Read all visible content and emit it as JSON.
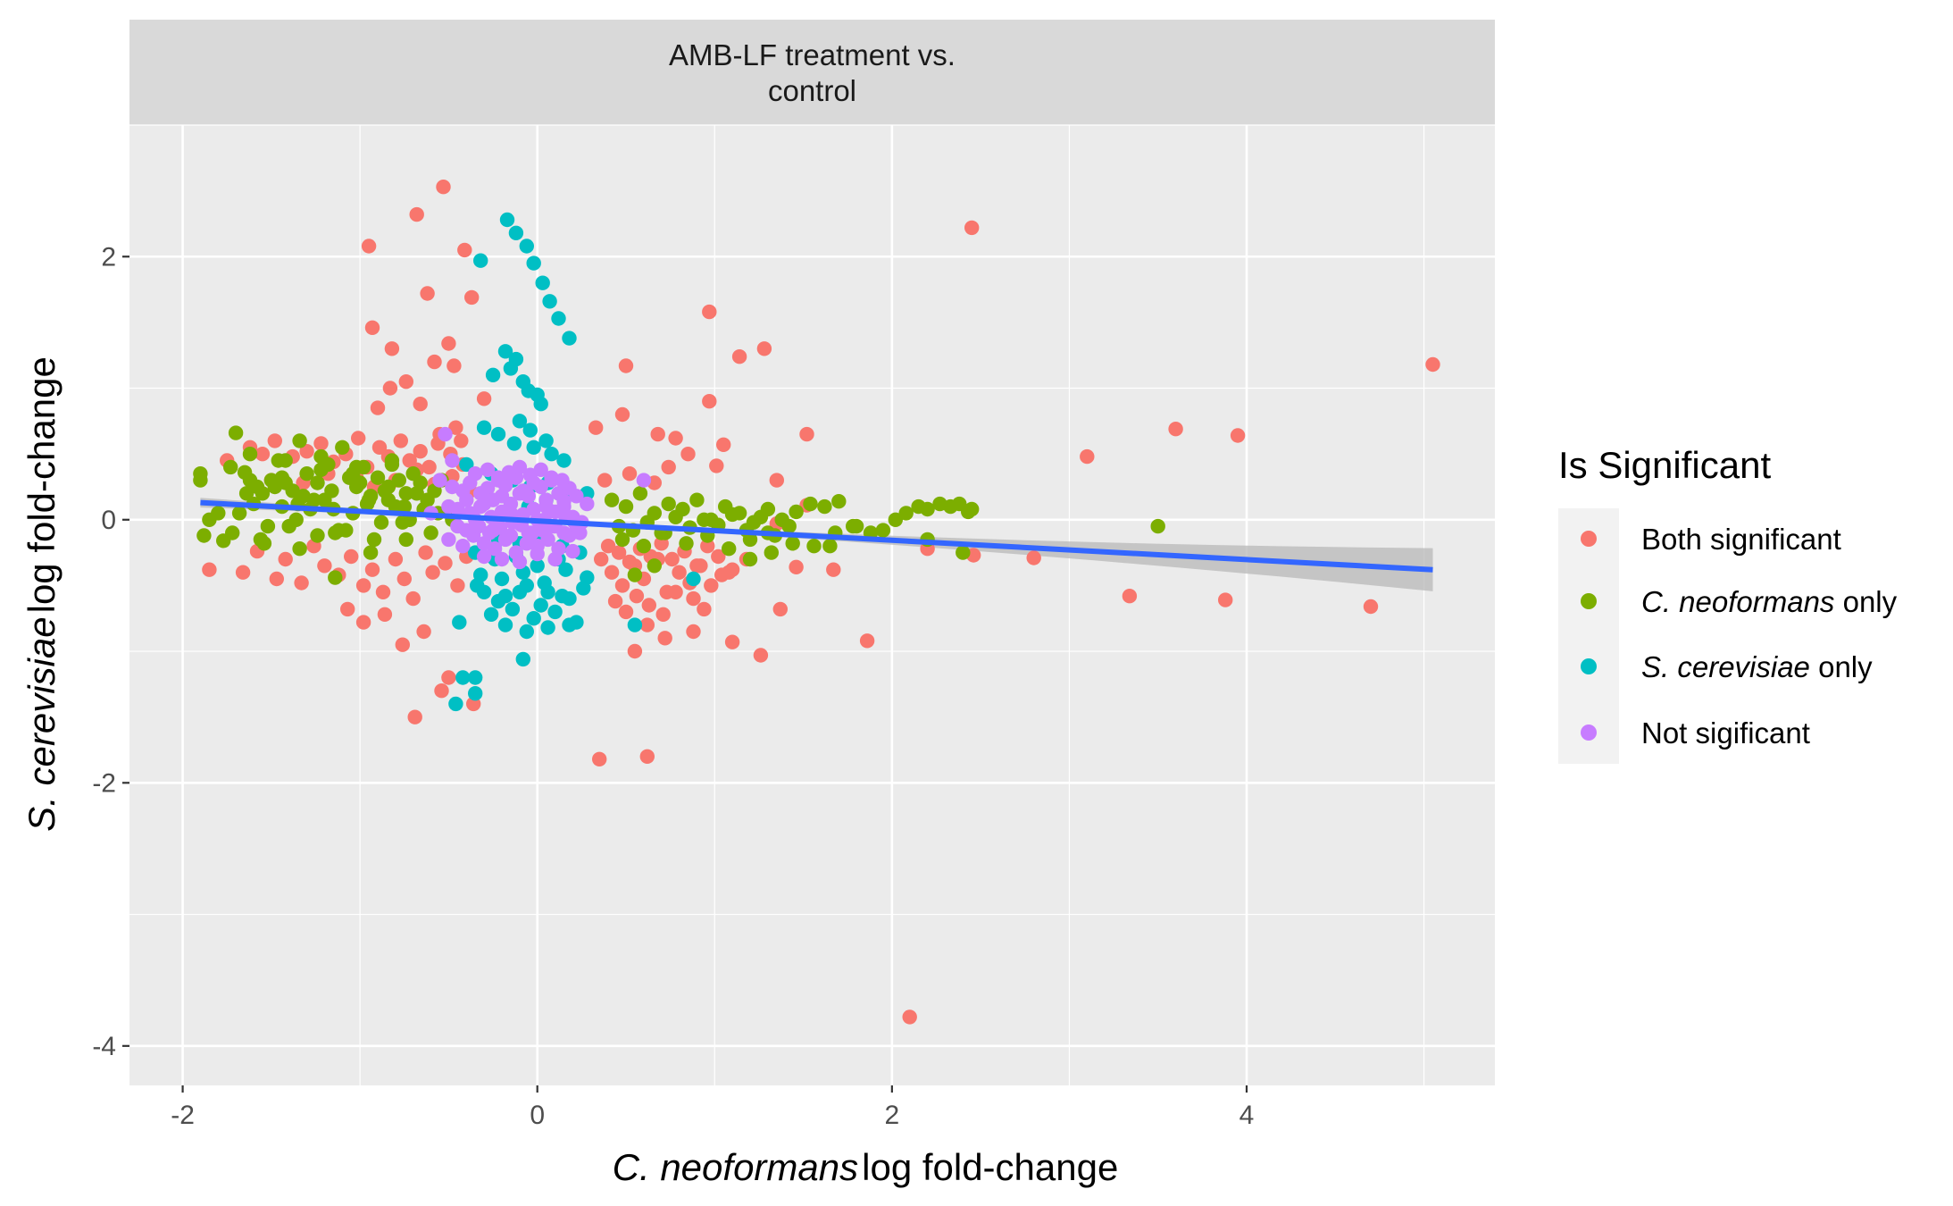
{
  "colors": {
    "both": "#F8766D",
    "cneo": "#7CAE00",
    "scer": "#00BFC4",
    "none": "#C77CFF",
    "fit": "#3366FF",
    "ribbon": "#B8B8B8",
    "panel": "#EBEBEB",
    "strip": "#D9D9D9",
    "grid": "#FFFFFF"
  },
  "chart_data": {
    "type": "scatter",
    "facet_title_line1": "AMB-LF treatment vs.",
    "facet_title_line2": "control",
    "xlabel_italic": "C. neoformans",
    "xlabel_rest": "log fold-change",
    "ylabel_italic": "S. cerevisiae",
    "ylabel_rest": "log fold-change",
    "xlim": [
      -2.3,
      5.4
    ],
    "ylim": [
      -4.3,
      3.0
    ],
    "x_ticks": [
      -2,
      0,
      2,
      4
    ],
    "x_tick_labels": [
      "-2",
      "0",
      "2",
      "4"
    ],
    "y_ticks": [
      -4,
      -2,
      0,
      2
    ],
    "y_tick_labels": [
      "-4",
      "-2",
      "0",
      "2"
    ],
    "grid": true,
    "legend_position": "right",
    "legend": {
      "title": "Is Significant",
      "items": [
        {
          "key": "both",
          "italic": "",
          "rest": "Both significant"
        },
        {
          "key": "cneo",
          "italic": "C. neoformans",
          "rest": " only"
        },
        {
          "key": "scer",
          "italic": "S. cerevisiae",
          "rest": " only"
        },
        {
          "key": "none",
          "italic": "",
          "rest": "Not sigificant"
        }
      ]
    },
    "fit_line": {
      "x": [
        -1.9,
        5.05
      ],
      "y": [
        0.13,
        -0.38
      ]
    },
    "series": [
      {
        "name": "Both significant",
        "key": "both",
        "x": [
          -0.53,
          -0.68,
          -0.95,
          -0.41,
          -0.37,
          -0.62,
          -0.93,
          -0.82,
          -0.5,
          -0.58,
          -0.47,
          -0.74,
          -0.83,
          -0.9,
          -0.66,
          -0.3,
          -0.46,
          -0.43,
          -0.55,
          0.5,
          0.48,
          0.97,
          1.14,
          1.28,
          0.97,
          0.68,
          0.78,
          0.85,
          1.05,
          1.01,
          0.33,
          2.45,
          3.1,
          3.6,
          3.95,
          5.05,
          1.35,
          1.52,
          1.35,
          1.52,
          1.46,
          1.1,
          1.26,
          1.37,
          1.67,
          1.86,
          2.2,
          2.46,
          2.8,
          3.34,
          3.88,
          4.7,
          -0.69,
          -0.36,
          -0.5,
          -0.54,
          0.35,
          0.62,
          2.1,
          -1.85,
          -1.66,
          -1.58,
          -1.47,
          -1.42,
          -1.33,
          -1.26,
          -1.2,
          -1.12,
          -1.05,
          -0.98,
          -0.93,
          -0.87,
          -0.8,
          -0.75,
          -0.7,
          -0.63,
          -0.59,
          -0.52,
          -0.45,
          -0.4,
          -1.75,
          -1.62,
          -1.55,
          -1.48,
          -1.38,
          -1.3,
          -1.22,
          -1.15,
          -1.08,
          -1.01,
          -0.96,
          -0.89,
          -0.84,
          -0.77,
          -0.72,
          -0.66,
          -0.61,
          -0.56,
          -0.49,
          -0.42,
          -1.5,
          -1.32,
          -1.18,
          -1.02,
          -0.92,
          -0.8,
          -0.68,
          -0.58,
          -0.48,
          -0.38,
          0.36,
          0.42,
          0.48,
          0.55,
          0.6,
          0.68,
          0.73,
          0.8,
          0.86,
          0.92,
          0.98,
          1.04,
          1.1,
          1.18,
          0.4,
          0.46,
          0.52,
          0.58,
          0.64,
          0.7,
          0.76,
          0.83,
          0.9,
          0.96,
          1.02,
          1.08,
          0.44,
          0.5,
          0.56,
          0.63,
          0.71,
          0.78,
          0.88,
          0.94,
          0.38,
          0.52,
          0.66,
          0.74,
          -0.98,
          -1.07,
          -0.86,
          -0.76,
          -0.64,
          0.55,
          0.62,
          0.72,
          0.88
        ],
        "y": [
          2.53,
          2.32,
          2.08,
          2.05,
          1.69,
          1.72,
          1.46,
          1.3,
          1.34,
          1.2,
          1.17,
          1.05,
          1.0,
          0.85,
          0.88,
          0.92,
          0.7,
          0.6,
          0.65,
          1.17,
          0.8,
          1.58,
          1.24,
          1.3,
          0.9,
          0.65,
          0.62,
          0.5,
          0.57,
          0.41,
          0.7,
          2.22,
          0.48,
          0.69,
          0.64,
          1.18,
          0.3,
          0.65,
          -0.03,
          0.11,
          -0.36,
          -0.93,
          -1.03,
          -0.68,
          -0.38,
          -0.92,
          -0.22,
          -0.27,
          -0.29,
          -0.58,
          -0.61,
          -0.66,
          -1.5,
          -1.4,
          -1.2,
          -1.3,
          -1.82,
          -1.8,
          -3.78,
          -0.38,
          -0.4,
          -0.24,
          -0.45,
          -0.3,
          -0.48,
          -0.2,
          -0.35,
          -0.42,
          -0.28,
          -0.5,
          -0.38,
          -0.55,
          -0.3,
          -0.45,
          -0.6,
          -0.25,
          -0.4,
          -0.33,
          -0.5,
          -0.28,
          0.45,
          0.55,
          0.5,
          0.6,
          0.48,
          0.52,
          0.58,
          0.44,
          0.5,
          0.62,
          0.4,
          0.55,
          0.48,
          0.6,
          0.45,
          0.52,
          0.4,
          0.58,
          0.5,
          0.42,
          0.3,
          0.28,
          0.35,
          0.32,
          0.25,
          0.3,
          0.38,
          0.27,
          0.33,
          0.22,
          -0.3,
          -0.4,
          -0.5,
          -0.35,
          -0.45,
          -0.3,
          -0.55,
          -0.4,
          -0.48,
          -0.35,
          -0.5,
          -0.42,
          -0.38,
          -0.3,
          -0.2,
          -0.25,
          -0.32,
          -0.22,
          -0.28,
          -0.18,
          -0.3,
          -0.24,
          -0.35,
          -0.2,
          -0.28,
          -0.4,
          -0.62,
          -0.7,
          -0.58,
          -0.65,
          -0.72,
          -0.55,
          -0.6,
          -0.68,
          0.3,
          0.35,
          0.28,
          0.4,
          -0.78,
          -0.68,
          -0.72,
          -0.95,
          -0.85,
          -1.0,
          -0.8,
          -0.9,
          -0.85
        ]
      },
      {
        "name": "C. neoformans only",
        "key": "cneo",
        "x": [
          -1.9,
          -1.88,
          -1.9,
          -1.85,
          -1.8,
          -1.73,
          -1.77,
          -1.7,
          -1.65,
          -1.62,
          -1.58,
          -1.55,
          -1.5,
          -1.46,
          -1.42,
          -1.38,
          -1.34,
          -1.3,
          -1.26,
          -1.22,
          -1.18,
          -1.14,
          -1.1,
          -1.06,
          -1.02,
          -0.98,
          -0.94,
          -0.9,
          -0.86,
          -0.82,
          -0.78,
          -0.74,
          -0.7,
          -0.66,
          -0.62,
          -0.58,
          -0.54,
          -1.68,
          -1.6,
          -1.52,
          -1.44,
          -1.36,
          -1.28,
          -1.2,
          -1.12,
          -1.04,
          -0.96,
          -0.88,
          -0.8,
          -0.72,
          -0.64,
          -0.56,
          -0.48,
          -1.72,
          -1.56,
          -1.4,
          -1.24,
          -1.08,
          -0.92,
          -0.76,
          -0.6,
          -1.64,
          -1.48,
          -1.32,
          -1.16,
          -1.0,
          -0.84,
          -0.68,
          -1.54,
          -1.34,
          -1.14,
          -0.94,
          -0.74,
          -1.44,
          -1.24,
          -1.04,
          -0.84,
          -1.35,
          -1.15,
          -0.95,
          -0.75,
          -1.62,
          -1.42,
          -1.22,
          -1.02,
          -0.82,
          0.42,
          0.5,
          0.58,
          0.66,
          0.74,
          0.82,
          0.9,
          0.98,
          1.06,
          1.14,
          1.22,
          1.3,
          1.38,
          1.46,
          1.54,
          1.62,
          1.7,
          0.46,
          0.54,
          0.62,
          0.7,
          0.78,
          0.86,
          0.94,
          1.02,
          1.1,
          1.18,
          1.26,
          1.34,
          1.42,
          0.48,
          0.6,
          0.72,
          0.84,
          0.96,
          1.08,
          1.2,
          1.32,
          1.44,
          1.56,
          1.68,
          1.78,
          1.8,
          1.88,
          1.95,
          2.02,
          2.08,
          2.15,
          2.2,
          2.27,
          2.33,
          2.38,
          2.43,
          2.45,
          2.2,
          2.4,
          1.65,
          3.5,
          0.55,
          0.66,
          1.2,
          1.3
        ],
        "y": [
          0.35,
          -0.12,
          0.3,
          0.0,
          0.05,
          0.4,
          -0.16,
          0.66,
          0.36,
          0.3,
          0.25,
          0.2,
          0.3,
          0.45,
          0.28,
          0.22,
          0.6,
          0.35,
          0.15,
          0.38,
          0.42,
          -0.44,
          0.55,
          0.32,
          0.25,
          0.4,
          0.18,
          0.32,
          0.22,
          0.45,
          0.3,
          0.2,
          0.35,
          0.28,
          0.15,
          0.22,
          0.3,
          0.05,
          0.12,
          -0.05,
          0.1,
          0.0,
          0.08,
          0.15,
          -0.08,
          0.05,
          0.12,
          -0.02,
          0.1,
          0.0,
          0.08,
          0.05,
          0.0,
          -0.1,
          -0.15,
          -0.05,
          -0.12,
          -0.08,
          -0.15,
          -0.02,
          -0.1,
          0.2,
          0.25,
          0.18,
          0.22,
          0.28,
          0.15,
          0.2,
          -0.18,
          -0.22,
          -0.1,
          -0.25,
          -0.15,
          0.32,
          0.28,
          0.35,
          0.25,
          0.12,
          0.08,
          0.15,
          0.1,
          0.5,
          0.45,
          0.48,
          0.4,
          0.42,
          0.15,
          0.1,
          0.2,
          0.05,
          0.12,
          0.08,
          0.15,
          0.0,
          0.1,
          0.05,
          -0.02,
          0.08,
          0.0,
          0.06,
          0.12,
          0.1,
          0.14,
          -0.05,
          -0.08,
          -0.02,
          -0.1,
          0.02,
          -0.06,
          0.0,
          -0.04,
          0.04,
          -0.08,
          0.02,
          -0.12,
          -0.05,
          -0.15,
          -0.2,
          -0.1,
          -0.18,
          -0.12,
          -0.22,
          -0.15,
          -0.25,
          -0.18,
          -0.2,
          -0.1,
          -0.05,
          -0.05,
          -0.1,
          -0.08,
          0.0,
          0.05,
          0.1,
          0.08,
          0.12,
          0.1,
          0.12,
          0.06,
          0.08,
          -0.15,
          -0.25,
          -0.2,
          -0.05,
          -0.42,
          -0.35,
          -0.3,
          -0.1
        ]
      },
      {
        "name": "S. cerevisiae only",
        "key": "scer",
        "x": [
          -0.17,
          -0.12,
          -0.06,
          -0.02,
          0.03,
          0.07,
          0.12,
          0.18,
          -0.32,
          -0.25,
          -0.15,
          -0.08,
          0.0,
          -0.18,
          -0.12,
          -0.05,
          0.02,
          -0.1,
          -0.04,
          0.05,
          -0.3,
          -0.22,
          -0.13,
          -0.02,
          0.08,
          0.15,
          -0.26,
          -0.14,
          -0.04,
          0.06,
          0.18,
          0.28,
          -0.35,
          -0.24,
          -0.12,
          0.0,
          0.12,
          0.24,
          -0.32,
          -0.2,
          -0.08,
          0.04,
          0.16,
          0.28,
          -0.3,
          -0.18,
          -0.06,
          0.06,
          0.18,
          -0.34,
          -0.22,
          -0.1,
          0.02,
          0.14,
          0.26,
          -0.26,
          -0.14,
          -0.02,
          0.1,
          0.22,
          -0.18,
          -0.06,
          0.06,
          0.18,
          -0.22,
          -0.1,
          0.02,
          0.14,
          -0.05,
          0.05,
          -0.46,
          -0.42,
          -0.35,
          -0.35,
          -0.44,
          0.55,
          0.88,
          -0.4,
          -0.08
        ],
        "y": [
          2.28,
          2.18,
          2.08,
          1.95,
          1.8,
          1.66,
          1.53,
          1.38,
          1.97,
          1.1,
          1.15,
          1.05,
          0.95,
          1.28,
          1.22,
          0.98,
          0.88,
          0.75,
          0.68,
          0.6,
          0.7,
          0.65,
          0.58,
          0.55,
          0.5,
          0.45,
          0.35,
          0.3,
          0.25,
          0.28,
          0.22,
          0.2,
          -0.25,
          -0.3,
          -0.28,
          -0.35,
          -0.3,
          -0.25,
          -0.42,
          -0.45,
          -0.4,
          -0.48,
          -0.38,
          -0.44,
          -0.55,
          -0.58,
          -0.5,
          -0.55,
          -0.6,
          -0.5,
          -0.62,
          -0.55,
          -0.65,
          -0.58,
          -0.52,
          -0.72,
          -0.68,
          -0.75,
          -0.7,
          -0.78,
          -0.8,
          -0.85,
          -0.82,
          -0.8,
          -0.15,
          -0.18,
          -0.12,
          -0.2,
          0.1,
          0.15,
          -1.4,
          -1.2,
          -1.32,
          -1.2,
          -0.78,
          -0.8,
          -0.45,
          0.42,
          -1.06
        ]
      },
      {
        "name": "Not sigificant",
        "key": "none",
        "x": [
          -0.6,
          -0.5,
          -0.45,
          -0.4,
          -0.35,
          -0.3,
          -0.25,
          -0.2,
          -0.15,
          -0.1,
          -0.05,
          0.0,
          0.05,
          0.1,
          0.15,
          0.2,
          0.25,
          -0.55,
          -0.48,
          -0.42,
          -0.38,
          -0.32,
          -0.28,
          -0.22,
          -0.18,
          -0.12,
          -0.08,
          -0.02,
          0.02,
          0.08,
          0.12,
          0.18,
          0.22,
          0.28,
          -0.5,
          -0.42,
          -0.36,
          -0.3,
          -0.24,
          -0.18,
          -0.12,
          -0.06,
          0.0,
          0.06,
          0.12,
          0.18,
          0.24,
          -0.45,
          -0.38,
          -0.32,
          -0.26,
          -0.2,
          -0.14,
          -0.08,
          -0.02,
          0.04,
          0.1,
          0.16,
          0.22,
          -0.4,
          -0.33,
          -0.27,
          -0.21,
          -0.15,
          -0.09,
          -0.03,
          0.03,
          0.09,
          0.15,
          0.21,
          -0.35,
          -0.28,
          -0.22,
          -0.16,
          -0.1,
          -0.04,
          0.02,
          0.08,
          0.14,
          -0.3,
          -0.2,
          -0.1,
          0.0,
          0.1,
          0.2,
          -0.25,
          -0.15,
          -0.05,
          0.05,
          0.15,
          -0.52,
          0.6,
          -0.48
        ],
        "y": [
          0.05,
          0.1,
          -0.05,
          0.15,
          0.0,
          0.12,
          -0.08,
          0.18,
          0.05,
          0.2,
          -0.1,
          0.0,
          0.15,
          -0.05,
          0.1,
          0.02,
          -0.02,
          0.3,
          0.25,
          0.22,
          0.28,
          0.2,
          0.24,
          0.3,
          0.26,
          0.32,
          0.22,
          0.28,
          0.25,
          0.3,
          0.2,
          0.24,
          0.18,
          0.12,
          -0.15,
          -0.2,
          -0.12,
          -0.18,
          -0.22,
          -0.15,
          -0.25,
          -0.18,
          -0.2,
          -0.15,
          -0.22,
          -0.12,
          -0.1,
          0.08,
          0.05,
          0.1,
          0.02,
          0.06,
          -0.02,
          0.04,
          0.08,
          0.0,
          0.06,
          0.02,
          -0.04,
          -0.08,
          -0.05,
          -0.1,
          -0.06,
          -0.12,
          -0.04,
          -0.1,
          -0.08,
          -0.05,
          -0.1,
          -0.02,
          0.35,
          0.38,
          0.32,
          0.36,
          0.4,
          0.34,
          0.38,
          0.32,
          0.3,
          -0.28,
          -0.3,
          -0.32,
          -0.26,
          -0.3,
          -0.24,
          0.15,
          0.12,
          0.18,
          0.1,
          0.14,
          0.65,
          0.3,
          0.45
        ]
      }
    ]
  }
}
